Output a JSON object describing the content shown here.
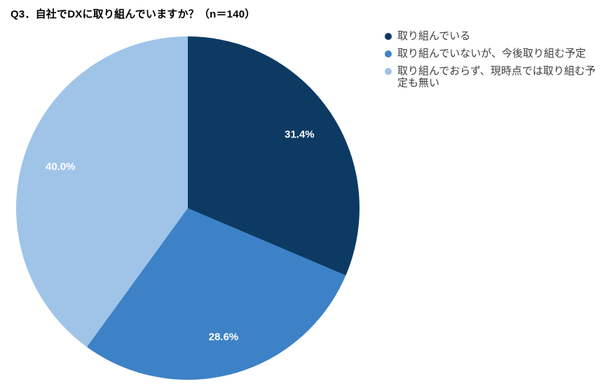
{
  "title": "Q3．自社でDXに取り組んでいますか？（n＝140）",
  "chart_data": {
    "type": "pie",
    "title": "Q3．自社でDXに取り組んでいますか？（n＝140）",
    "sample_size_label": "n＝140",
    "start_angle_deg": 0,
    "direction": "clockwise",
    "legend_position": "top-right",
    "background_color": "#ffffff",
    "slices": [
      {
        "label": "取り組んでいる",
        "value": 31.4,
        "pct_label": "31.4%",
        "color": "#0C3A63"
      },
      {
        "label": "取り組んでいないが、今後取り組む予定",
        "value": 28.6,
        "pct_label": "28.6%",
        "color": "#3D82C6"
      },
      {
        "label": "取り組んでおらず、現時点では取り組む予定も無い",
        "value": 40.0,
        "pct_label": "40.0%",
        "color": "#9FC4E8"
      }
    ],
    "label_text_color": "#ffffff",
    "legend_text_color": "#404040"
  }
}
